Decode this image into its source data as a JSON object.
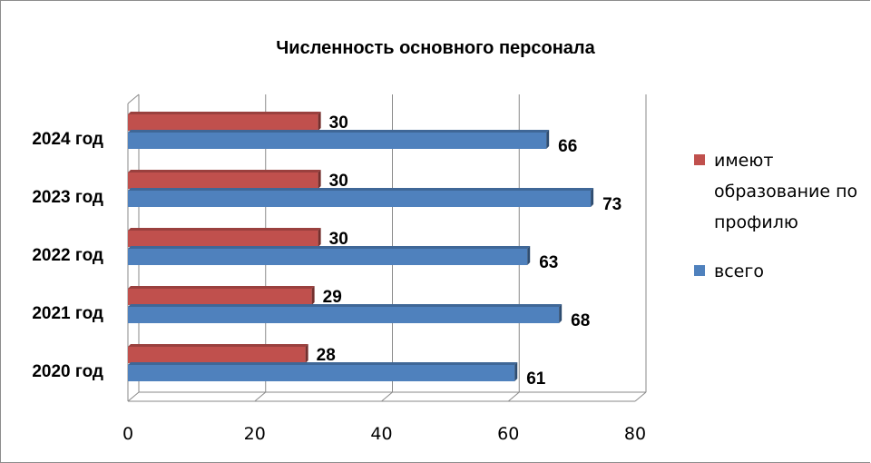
{
  "chart_data": {
    "type": "bar",
    "orientation": "horizontal",
    "title": "Численность основного персонала",
    "categories": [
      "2024 год",
      "2023 год",
      "2022 год",
      "2021 год",
      "2020 год"
    ],
    "series": [
      {
        "name": "имеют образование по профилю",
        "color": "#c0504d",
        "values": [
          30,
          30,
          30,
          29,
          28
        ]
      },
      {
        "name": "всего",
        "color": "#4f81bd",
        "values": [
          66,
          73,
          63,
          68,
          61
        ]
      }
    ],
    "xlim": [
      0,
      80
    ],
    "xticks": [
      0,
      20,
      40,
      60,
      80
    ],
    "grid": true,
    "legend": "right"
  }
}
